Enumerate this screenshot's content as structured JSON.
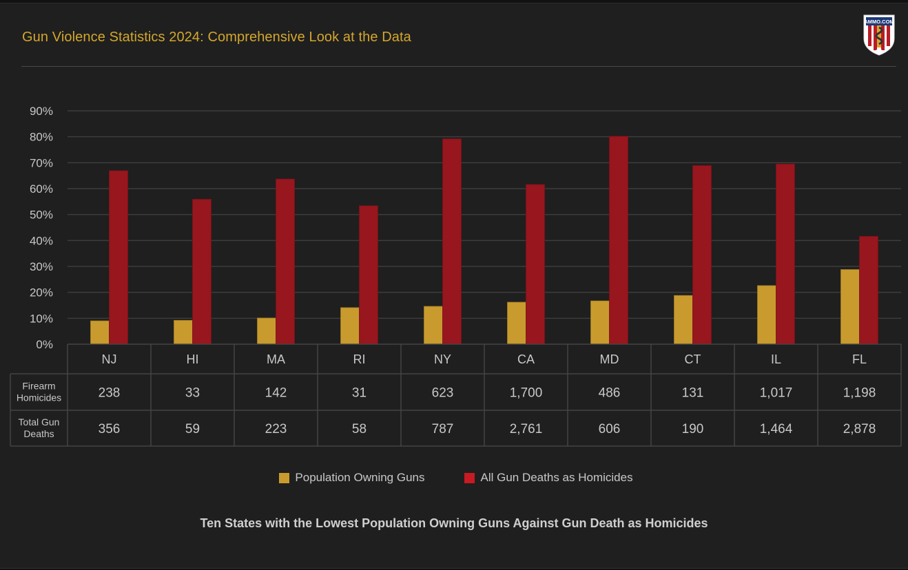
{
  "header": {
    "title": "Gun Violence Statistics 2024: Comprehensive Look at the Data",
    "logo_text": "AMMO.COM"
  },
  "colors": {
    "gold": "#c99b2e",
    "red": "#98161e",
    "legend_red": "#c81a22",
    "title": "#d4a72c"
  },
  "chart_data": {
    "type": "bar",
    "title": "Ten States with the Lowest Population Owning Guns Against Gun Death as Homicides",
    "xlabel": "",
    "ylabel": "",
    "ylim": [
      0,
      90
    ],
    "yticks": [
      "0%",
      "10%",
      "20%",
      "30%",
      "40%",
      "50%",
      "60%",
      "70%",
      "80%",
      "90%"
    ],
    "grid": true,
    "legend_position": "bottom",
    "categories": [
      "NJ",
      "HI",
      "MA",
      "RI",
      "NY",
      "CA",
      "MD",
      "CT",
      "IL",
      "FL"
    ],
    "series": [
      {
        "name": "Population Owning Guns",
        "values": [
          9.0,
          9.2,
          10.1,
          14.1,
          14.6,
          16.2,
          16.7,
          18.8,
          22.6,
          28.8
        ]
      },
      {
        "name": "All Gun Deaths as Homicides",
        "values": [
          66.9,
          55.9,
          63.7,
          53.4,
          79.2,
          61.6,
          80.2,
          68.9,
          69.5,
          41.6
        ]
      }
    ],
    "table": {
      "rows": [
        {
          "label_lines": [
            "Firearm",
            "Homicides"
          ],
          "values": [
            "238",
            "33",
            "142",
            "31",
            "623",
            "1,700",
            "486",
            "131",
            "1,017",
            "1,198"
          ]
        },
        {
          "label_lines": [
            "Total Gun",
            "Deaths"
          ],
          "values": [
            "356",
            "59",
            "223",
            "58",
            "787",
            "2,761",
            "606",
            "190",
            "1,464",
            "2,878"
          ]
        }
      ]
    }
  }
}
